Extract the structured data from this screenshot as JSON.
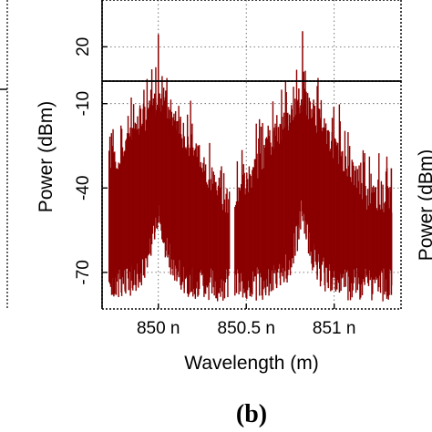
{
  "panel_label": "(b)",
  "neighbor_panel_partial_label": "Power (dBm)",
  "colors": {
    "trace": "#8b0000",
    "axes": "#000000",
    "background": "#ffffff"
  },
  "chart_data": {
    "type": "line",
    "title": "",
    "xlabel": "Wavelength (m)",
    "ylabel": "Power (dBm)",
    "xlim": [
      849.68,
      851.38
    ],
    "ylim_top_panel": [
      -2,
      50
    ],
    "ylim_main_panel": [
      -83,
      -2
    ],
    "x_ticks": [
      {
        "value": 850.0,
        "label": "850 n"
      },
      {
        "value": 850.5,
        "label": "850.5 n"
      },
      {
        "value": 851.0,
        "label": "851 n"
      }
    ],
    "y_ticks_top_panel": [
      {
        "value": 20,
        "label": "20"
      }
    ],
    "y_ticks_main_panel": [
      {
        "value": -10,
        "label": "-10"
      },
      {
        "value": -40,
        "label": "-40"
      },
      {
        "value": -70,
        "label": "-70"
      }
    ],
    "grid": true,
    "grid_style": "dotted",
    "series": [
      {
        "description": "two frequency-comb spectra, peaks near 850.0 nm and 850.82 nm",
        "peaks": [
          {
            "x": 850.0,
            "y": 28
          },
          {
            "x": 850.82,
            "y": 30
          }
        ],
        "floor_min_y": -78,
        "outer_floor_y": -40,
        "gap_x": 850.42
      }
    ]
  }
}
